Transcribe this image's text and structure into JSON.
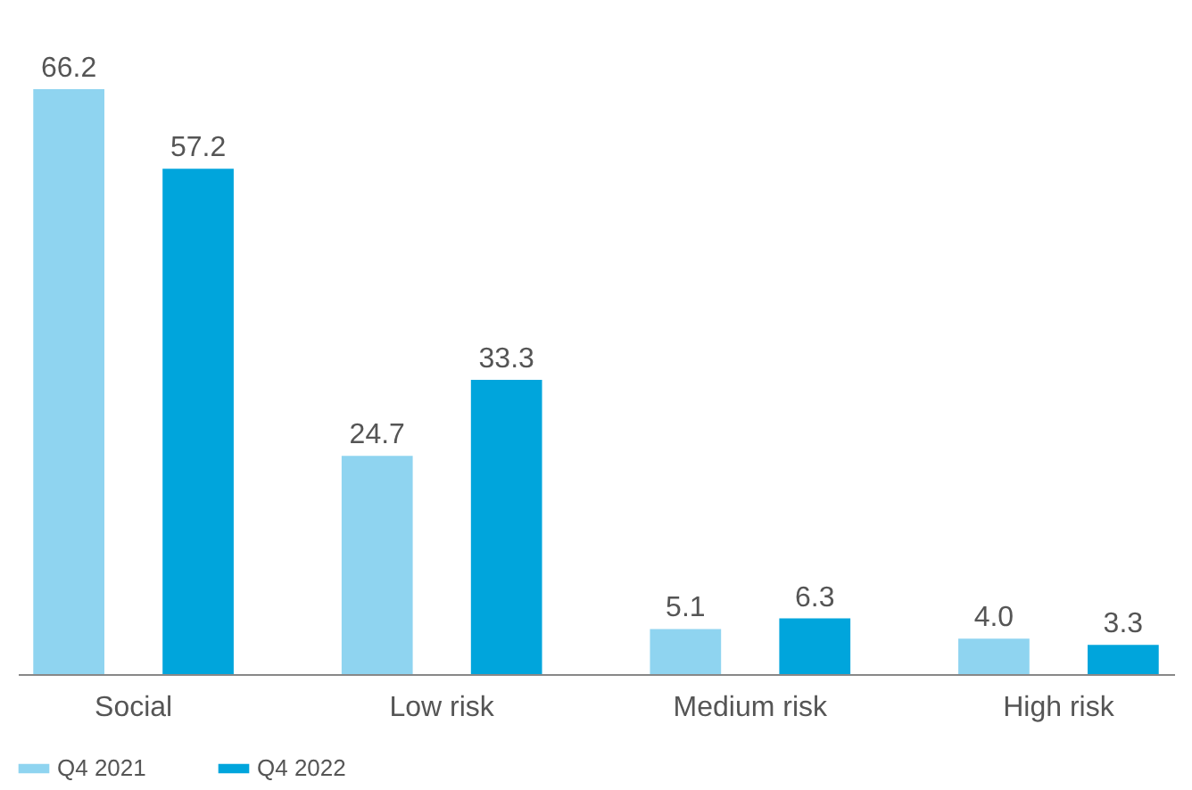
{
  "chart_data": {
    "type": "bar",
    "categories": [
      "Social",
      "Low risk",
      "Medium risk",
      "High risk"
    ],
    "series": [
      {
        "name": "Q4 2021",
        "color": "#8fd4f0",
        "values": [
          66.2,
          24.7,
          5.1,
          4.0
        ],
        "value_labels": [
          "66.2",
          "24.7",
          "5.1",
          "4.0"
        ]
      },
      {
        "name": "Q4 2022",
        "color": "#00a5dc",
        "values": [
          57.2,
          33.3,
          6.3,
          3.3
        ],
        "value_labels": [
          "57.2",
          "33.3",
          "6.3",
          "3.3"
        ]
      }
    ],
    "legend": "bottom left",
    "grid": false
  }
}
